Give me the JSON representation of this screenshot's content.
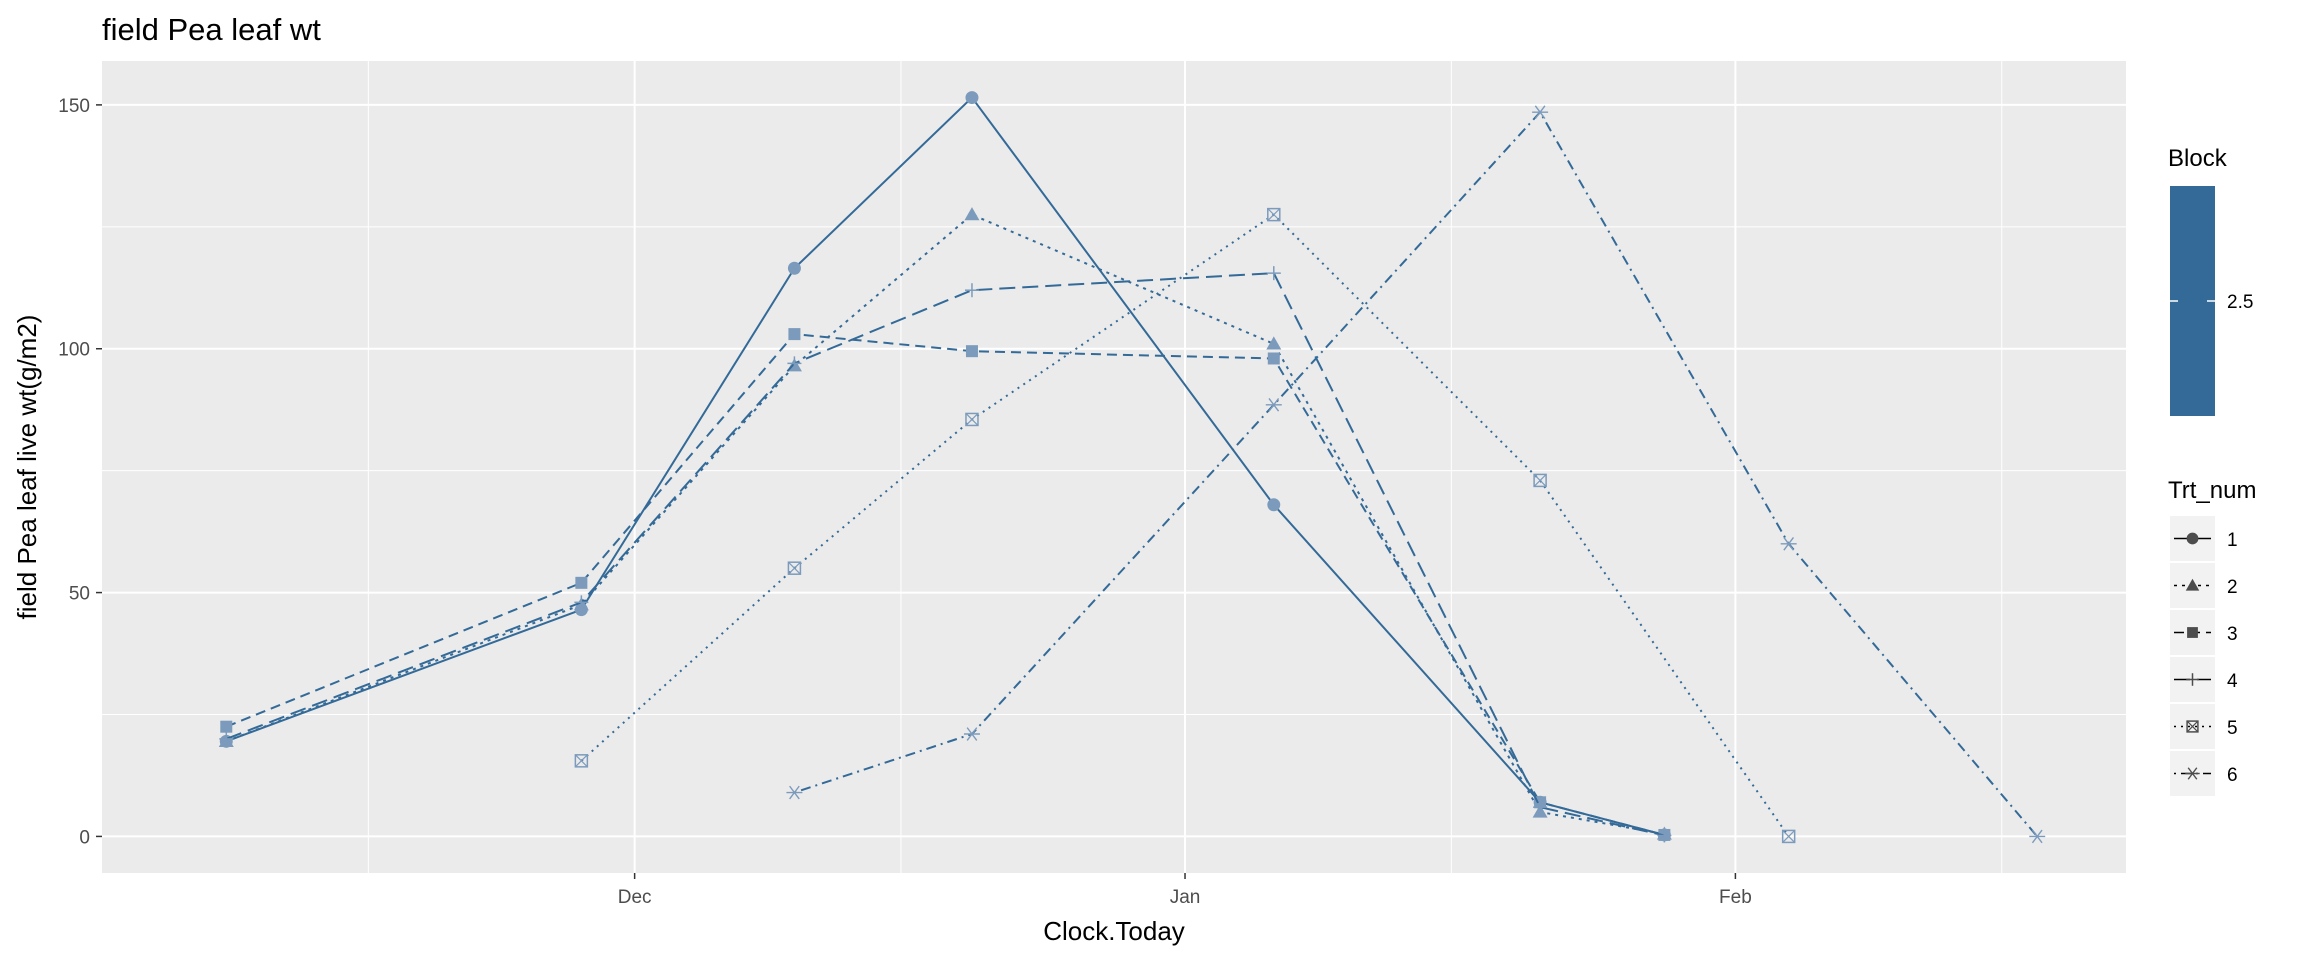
{
  "chart_data": {
    "type": "line",
    "title": "field Pea leaf wt",
    "xlabel": "Clock.Today",
    "ylabel": "field Pea leaf live wt(g/m2)",
    "x_type": "date",
    "x_ticks": [
      {
        "date": "2016-12-01",
        "label": "Dec"
      },
      {
        "date": "2017-01-01",
        "label": "Jan"
      },
      {
        "date": "2017-02-01",
        "label": "Feb"
      }
    ],
    "y_ticks": [
      0,
      50,
      100,
      150
    ],
    "ylim": [
      -7.5,
      159
    ],
    "grid": true,
    "legend": {
      "position": "right",
      "block": {
        "title": "Block",
        "label": "2.5",
        "color": "#336a98"
      },
      "trt": {
        "title": "Trt_num",
        "entries": [
          {
            "label": "1",
            "shape": "circle",
            "dash": "solid"
          },
          {
            "label": "2",
            "shape": "triangle",
            "dash": "dotted"
          },
          {
            "label": "3",
            "shape": "square",
            "dash": "dashed"
          },
          {
            "label": "4",
            "shape": "plus",
            "dash": "longdash"
          },
          {
            "label": "5",
            "shape": "boxcross",
            "dash": "dotted-fine"
          },
          {
            "label": "6",
            "shape": "asterisk",
            "dash": "dotdash"
          }
        ]
      }
    },
    "series": [
      {
        "name": "1",
        "points": [
          [
            "2016-11-08",
            19.5
          ],
          [
            "2016-11-28",
            46.5
          ],
          [
            "2016-12-10",
            116.5
          ],
          [
            "2016-12-20",
            151.5
          ],
          [
            "2017-01-06",
            68
          ],
          [
            "2017-01-21",
            7
          ],
          [
            "2017-01-28",
            0.3
          ]
        ]
      },
      {
        "name": "2",
        "points": [
          [
            "2016-11-08",
            19.5
          ],
          [
            "2016-11-28",
            47.5
          ],
          [
            "2016-12-10",
            96.5
          ],
          [
            "2016-12-20",
            127.5
          ],
          [
            "2017-01-06",
            101
          ],
          [
            "2017-01-21",
            5
          ],
          [
            "2017-01-28",
            0.5
          ]
        ]
      },
      {
        "name": "3",
        "points": [
          [
            "2016-11-08",
            22.5
          ],
          [
            "2016-11-28",
            52
          ],
          [
            "2016-12-10",
            103
          ],
          [
            "2016-12-20",
            99.5
          ],
          [
            "2017-01-06",
            98
          ],
          [
            "2017-01-21",
            7
          ],
          [
            "2017-01-28",
            0.3
          ]
        ]
      },
      {
        "name": "4",
        "points": [
          [
            "2016-11-08",
            20
          ],
          [
            "2016-11-28",
            48
          ],
          [
            "2016-12-10",
            97
          ],
          [
            "2016-12-20",
            112
          ],
          [
            "2017-01-06",
            115.5
          ],
          [
            "2017-01-21",
            6
          ],
          [
            "2017-01-28",
            0.2
          ]
        ]
      },
      {
        "name": "5",
        "points": [
          [
            "2016-11-28",
            15.5
          ],
          [
            "2016-12-10",
            55
          ],
          [
            "2016-12-20",
            85.5
          ],
          [
            "2017-01-06",
            127.5
          ],
          [
            "2017-01-21",
            73
          ],
          [
            "2017-02-04",
            0
          ]
        ]
      },
      {
        "name": "6",
        "points": [
          [
            "2016-12-10",
            9
          ],
          [
            "2016-12-20",
            21
          ],
          [
            "2017-01-06",
            88.5
          ],
          [
            "2017-01-21",
            148.5
          ],
          [
            "2017-02-04",
            60
          ],
          [
            "2017-02-18",
            0
          ]
        ]
      }
    ]
  }
}
